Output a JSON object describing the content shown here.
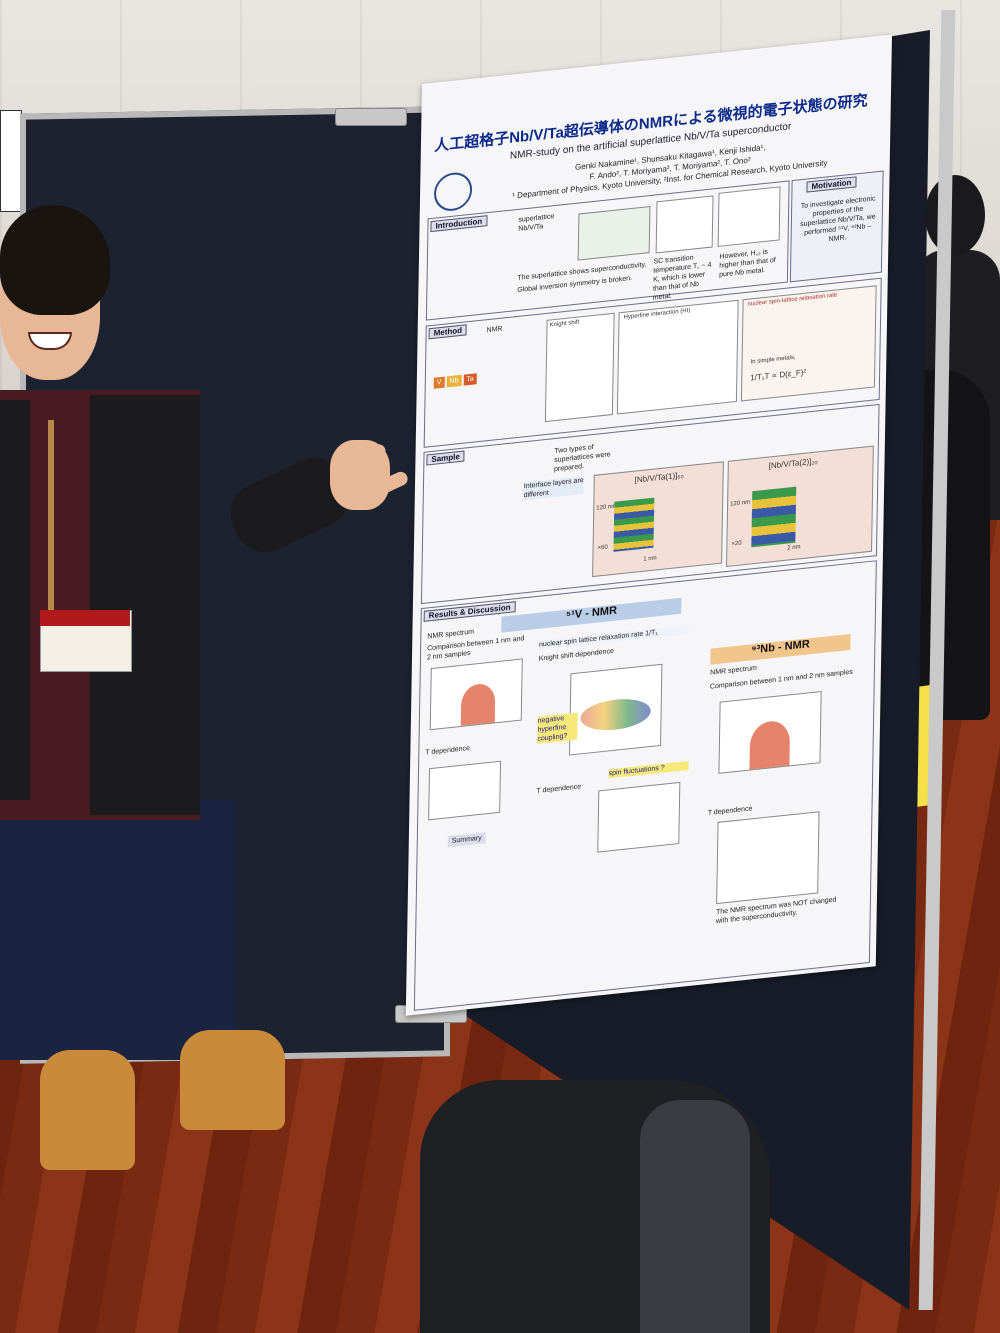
{
  "poster": {
    "title": "人工超格子Nb/V/Ta超伝導体のNMRによる微視的電子状態の研究",
    "subtitle": "NMR-study on the artificial superlattice Nb/V/Ta superconductor",
    "authors_line1": "Genki Nakamine¹, Shunsaku Kitagawa¹, Kenji Ishida¹,",
    "authors_line2": "F. Ando², T. Moriyama², T. Moriyama², T. Ono²",
    "affiliations": "¹ Department of Physics, Kyoto University, ²Inst. for Chemical Research, Kyoto University",
    "introduction": {
      "tag": "Introduction",
      "sample_label": "superlattice Nb/V/Ta",
      "note1": "The superlattice shows superconductivity.",
      "note2": "Global inversion symmetry is broken.",
      "note3": "SC transition temperature T꜀ ~ 4 K, which is lower than that of Nb metal.",
      "note4": "However, H꜀₂ is higher than that of pure Nb metal."
    },
    "motivation": {
      "tag": "Motivation",
      "text": "To investigate electronic properties of the superlattice Nb/V/Ta, we performed ⁵¹V, ⁹³Nb –NMR."
    },
    "method": {
      "tag": "Method",
      "nmr_label": "NMR",
      "knight_shift": "Knight shift",
      "hyperfine": "Hyperfine interaction (HI)",
      "relaxation": "nuclear spin-lattice relaxation rate",
      "formula": "1/T₁T ∝ D(ε_F)²",
      "metals": "In simple metals,",
      "labels": [
        "Knight shift",
        "nuclear spin-lattice relaxation rate"
      ],
      "elements": [
        "V",
        "Nb",
        "Ta"
      ]
    },
    "sample": {
      "tag": "Sample",
      "note": "Two types of superlattices were prepared.",
      "interface": "Interface layers are different",
      "sl1": "[Nb/V/Ta(1)]₆₀",
      "sl2": "[Nb/V/Ta(2)]₂₀",
      "thick1": "120 nm",
      "thick2": "120 nm",
      "layer1": "1 nm",
      "layer2": "2 nm",
      "rep1": "×60",
      "rep2": "×20"
    },
    "results": {
      "tag": "Results & Discussion",
      "v_ribbon": "⁵¹V - NMR",
      "nb_ribbon": "⁹³Nb - NMR",
      "nmr_spectrum": "NMR spectrum",
      "comparison": "Comparison between 1 nm and 2 nm samples",
      "relax_rate": "nuclear spin lattice relaxation rate 1/T₁",
      "knight_dep": "Knight shift dependence",
      "t_dep": "T dependence",
      "negative": "negative hyperfine coupling?",
      "spin_fluct": "spin fluctuations ?",
      "nb_spectrum": "NMR spectrum",
      "nb_comparison": "Comparison between 1 nm and 2 nm samples",
      "nb_t_dep": "T dependence",
      "summary": "Summary",
      "nb_summary": "The NMR spectrum was NOT changed with the superconductivity."
    }
  }
}
